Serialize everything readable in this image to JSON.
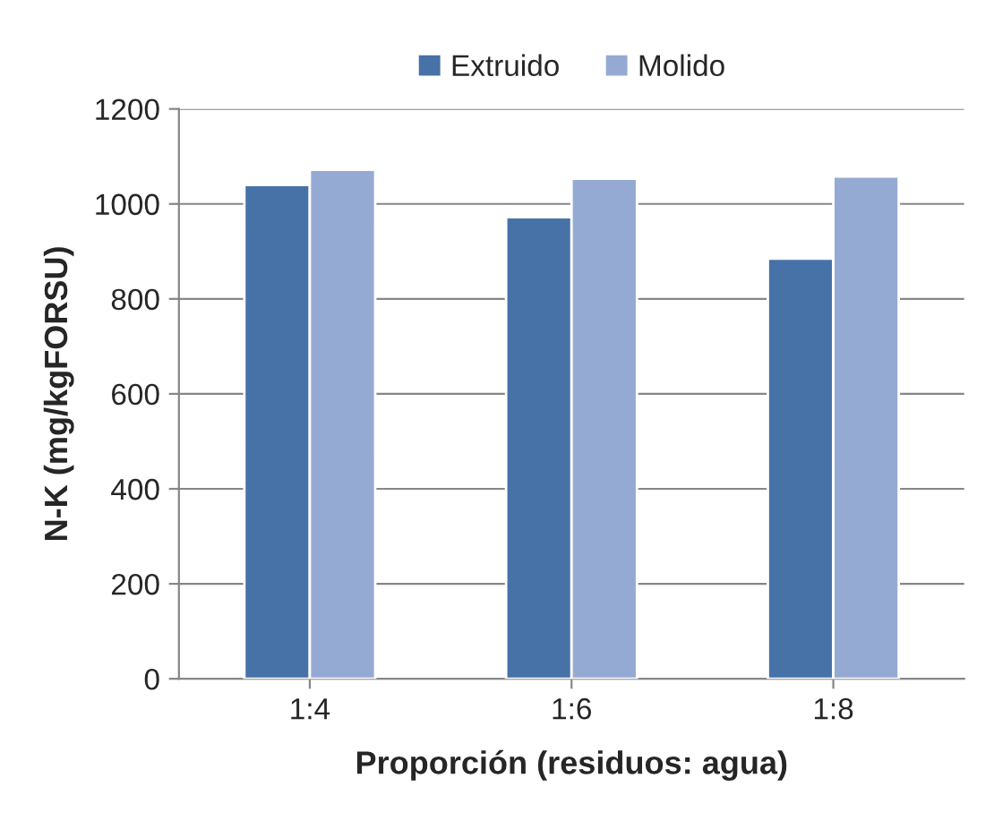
{
  "chart_data": {
    "type": "bar",
    "xlabel": "Proporción (residuos: agua)",
    "ylabel": "N-K (mg/kgFORSU)",
    "categories": [
      "1:4",
      "1:6",
      "1:8"
    ],
    "series": [
      {
        "name": "Extruido",
        "color": "#4672a8",
        "values": [
          1040,
          972,
          885
        ]
      },
      {
        "name": "Molido",
        "color": "#95aad3",
        "values": [
          1072,
          1053,
          1058
        ]
      }
    ],
    "ylim": [
      0,
      1200
    ],
    "yticks": [
      0,
      200,
      400,
      600,
      800,
      1000,
      1200
    ],
    "grid": "y",
    "legend": "top"
  }
}
